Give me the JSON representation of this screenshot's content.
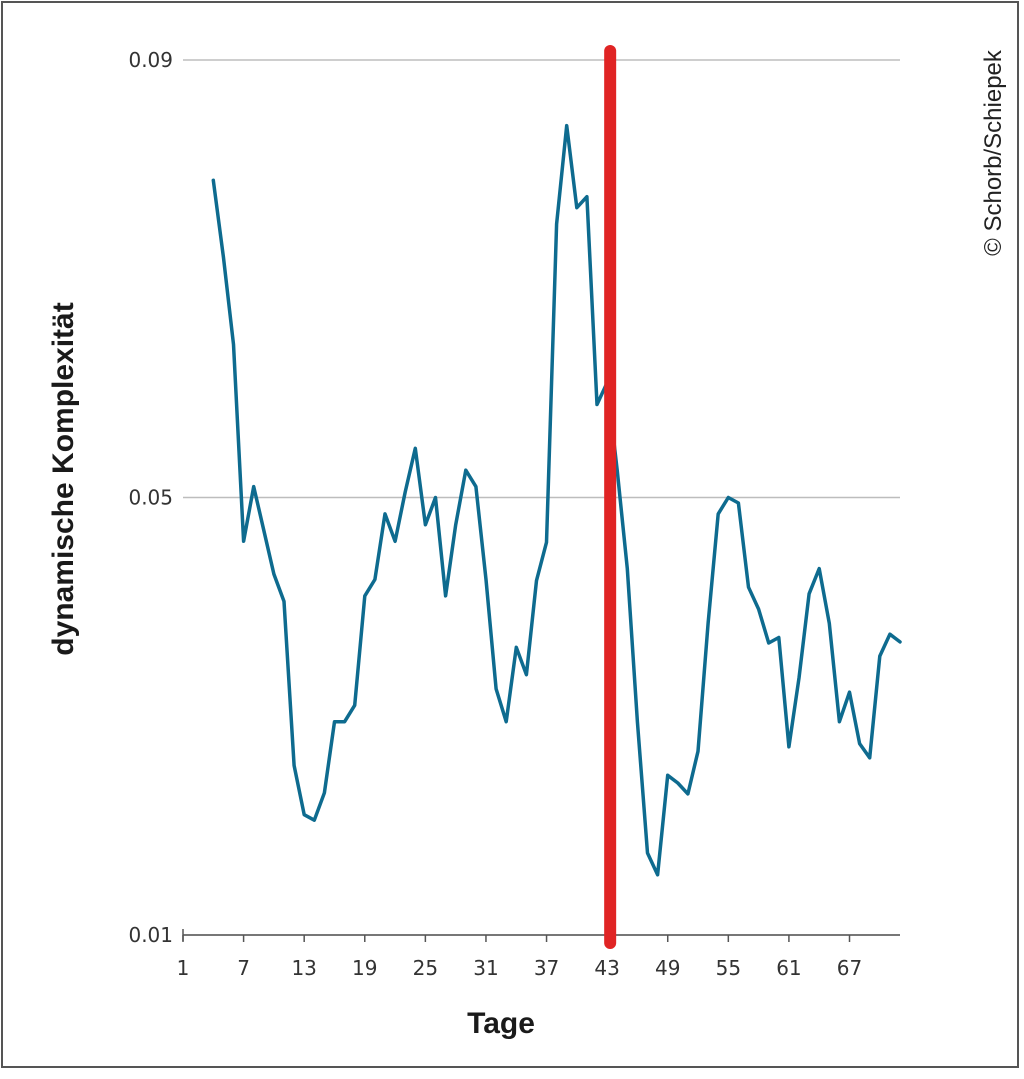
{
  "chart_data": {
    "type": "line",
    "xlabel": "Tage",
    "ylabel": "dynamische Komplexität",
    "y_ticks": [
      {
        "value": 0.09,
        "label": "0.09"
      },
      {
        "value": 0.05,
        "label": "0.05"
      },
      {
        "value": 0.01,
        "label": "0.01"
      }
    ],
    "ylim": [
      0.01,
      0.09
    ],
    "xlim": [
      1,
      72
    ],
    "x_ticks": [
      1,
      7,
      13,
      19,
      25,
      31,
      37,
      43,
      49,
      55,
      61,
      67
    ],
    "grid": "horizontal",
    "series": [
      {
        "color": "#0e6b8f",
        "x": [
          4,
          5,
          6,
          7,
          8,
          9,
          10,
          11,
          12,
          13,
          14,
          15,
          16,
          17,
          18,
          19,
          20,
          21,
          22,
          23,
          24,
          25,
          26,
          27,
          28,
          29,
          30,
          31,
          32,
          33,
          34,
          35,
          36,
          37,
          38,
          39,
          40,
          41,
          42,
          43,
          44,
          45,
          46,
          47,
          48,
          49,
          50,
          51,
          52,
          53,
          54,
          55,
          56,
          57,
          58,
          59,
          60,
          61,
          62,
          63,
          64,
          65,
          66,
          67,
          68,
          69,
          70,
          71,
          72
        ],
        "y": [
          0.079,
          0.072,
          0.064,
          0.046,
          0.051,
          0.047,
          0.043,
          0.0405,
          0.0255,
          0.021,
          0.0205,
          0.023,
          0.0295,
          0.0295,
          0.031,
          0.041,
          0.0425,
          0.0485,
          0.046,
          0.0505,
          0.0545,
          0.0475,
          0.05,
          0.041,
          0.0475,
          0.0525,
          0.051,
          0.0425,
          0.0325,
          0.0295,
          0.0363,
          0.0338,
          0.0424,
          0.0459,
          0.075,
          0.084,
          0.0765,
          0.0775,
          0.0585,
          0.0605,
          0.0525,
          0.0435,
          0.0295,
          0.0175,
          0.0155,
          0.0246,
          0.0239,
          0.0229,
          0.0268,
          0.0385,
          0.0485,
          0.05,
          0.0495,
          0.0418,
          0.0398,
          0.0367,
          0.0372,
          0.0272,
          0.0335,
          0.0412,
          0.0435,
          0.0385,
          0.0295,
          0.0322,
          0.0275,
          0.0262,
          0.0355,
          0.0375,
          0.0368
        ]
      }
    ],
    "annotations": [
      {
        "type": "vertical-line",
        "x": 43.3,
        "color": "#e02424"
      }
    ]
  },
  "copyright": "© Schorb/Schiepek"
}
